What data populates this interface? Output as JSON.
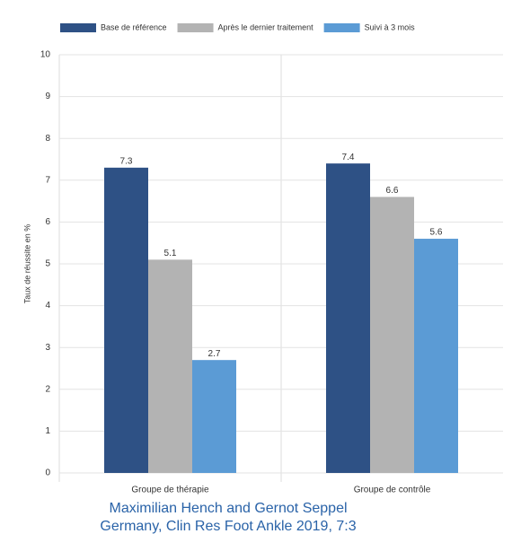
{
  "chart_data": {
    "type": "bar",
    "categories": [
      "Groupe de thérapie",
      "Groupe de contrôle"
    ],
    "series": [
      {
        "name": "Base de référence",
        "color": "#2e5185",
        "values": [
          7.3,
          7.4
        ]
      },
      {
        "name": "Après le dernier traitement",
        "color": "#b3b3b3",
        "values": [
          5.1,
          6.6
        ]
      },
      {
        "name": "Suivi à 3 mois",
        "color": "#5b9bd5",
        "values": [
          2.7,
          5.6
        ]
      }
    ],
    "y_label": "Taux de réussite en %",
    "ylim": [
      0,
      10
    ],
    "yticks": [
      0,
      1,
      2,
      3,
      4,
      5,
      6,
      7,
      8,
      9,
      10
    ],
    "grid": true,
    "legend": "top",
    "caption": [
      "Maximilian Hench and Gernot Seppel",
      "Germany, Clin Res Foot Ankle 2019, 7:3"
    ]
  }
}
